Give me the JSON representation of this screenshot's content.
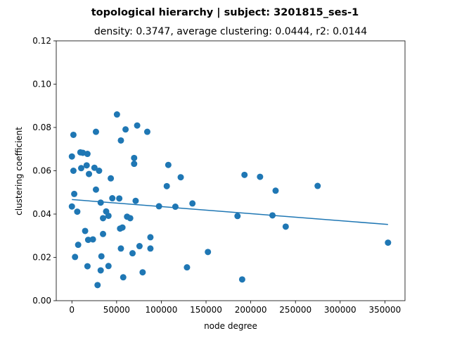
{
  "chart_data": {
    "type": "scatter",
    "title": "topological hierarchy | subject: 3201815_ses-1",
    "subtitle": "density: 0.3747,  average clustering: 0.0444,  r2: 0.0144",
    "xlabel": "node degree",
    "ylabel": "clustering coefficient",
    "xlim": [
      -17500,
      372500
    ],
    "ylim": [
      0.0,
      0.12
    ],
    "xticks": [
      0,
      50000,
      100000,
      150000,
      200000,
      250000,
      300000,
      350000
    ],
    "xtick_labels": [
      "0",
      "50000",
      "100000",
      "150000",
      "200000",
      "250000",
      "300000",
      "350000"
    ],
    "yticks": [
      0.0,
      0.02,
      0.04,
      0.06,
      0.08,
      0.1,
      0.12
    ],
    "ytick_labels": [
      "0.00",
      "0.02",
      "0.04",
      "0.06",
      "0.08",
      "0.10",
      "0.12"
    ],
    "grid": false,
    "color": "#1f77b4",
    "points": [
      [
        0,
        0.0666
      ],
      [
        0,
        0.0435
      ],
      [
        1700,
        0.0766
      ],
      [
        1700,
        0.06
      ],
      [
        2600,
        0.0493
      ],
      [
        3500,
        0.0202
      ],
      [
        6000,
        0.0411
      ],
      [
        7000,
        0.0258
      ],
      [
        9500,
        0.0685
      ],
      [
        10400,
        0.0612
      ],
      [
        12200,
        0.0683
      ],
      [
        14800,
        0.0322
      ],
      [
        16500,
        0.0625
      ],
      [
        17400,
        0.0678
      ],
      [
        17400,
        0.0159
      ],
      [
        18200,
        0.0281
      ],
      [
        19100,
        0.0585
      ],
      [
        23500,
        0.0283
      ],
      [
        25200,
        0.0614
      ],
      [
        26900,
        0.078
      ],
      [
        26900,
        0.0513
      ],
      [
        28700,
        0.0072
      ],
      [
        30400,
        0.06
      ],
      [
        32200,
        0.0453
      ],
      [
        32200,
        0.014
      ],
      [
        33000,
        0.0205
      ],
      [
        34800,
        0.0381
      ],
      [
        34800,
        0.0308
      ],
      [
        38300,
        0.0412
      ],
      [
        40900,
        0.0392
      ],
      [
        40900,
        0.016
      ],
      [
        43500,
        0.0565
      ],
      [
        45200,
        0.0473
      ],
      [
        50400,
        0.086
      ],
      [
        53000,
        0.0472
      ],
      [
        53900,
        0.0333
      ],
      [
        54800,
        0.074
      ],
      [
        54800,
        0.0241
      ],
      [
        56500,
        0.0338
      ],
      [
        57400,
        0.0108
      ],
      [
        60000,
        0.0791
      ],
      [
        61700,
        0.0388
      ],
      [
        65200,
        0.0381
      ],
      [
        67800,
        0.0219
      ],
      [
        69600,
        0.0659
      ],
      [
        69600,
        0.0632
      ],
      [
        71300,
        0.0461
      ],
      [
        73000,
        0.0809
      ],
      [
        75600,
        0.0252
      ],
      [
        79100,
        0.0131
      ],
      [
        84300,
        0.078
      ],
      [
        87800,
        0.0293
      ],
      [
        87800,
        0.0241
      ],
      [
        97400,
        0.0436
      ],
      [
        106100,
        0.0529
      ],
      [
        107800,
        0.0627
      ],
      [
        115700,
        0.0434
      ],
      [
        121700,
        0.057
      ],
      [
        128700,
        0.0154
      ],
      [
        134800,
        0.0449
      ],
      [
        152100,
        0.0225
      ],
      [
        185200,
        0.0391
      ],
      [
        190400,
        0.0098
      ],
      [
        193000,
        0.0581
      ],
      [
        210400,
        0.0572
      ],
      [
        224300,
        0.0394
      ],
      [
        227800,
        0.0508
      ],
      [
        239100,
        0.0342
      ],
      [
        274800,
        0.053
      ],
      [
        353500,
        0.0268
      ]
    ],
    "fit_line": {
      "x": [
        0,
        353500
      ],
      "y": [
        0.0467,
        0.0352
      ]
    }
  }
}
